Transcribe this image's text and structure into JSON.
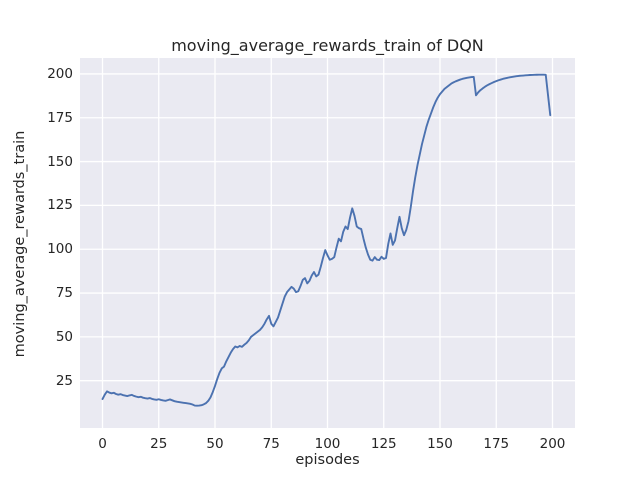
{
  "chart_data": {
    "type": "line",
    "title": "moving_average_rewards_train of DQN",
    "xlabel": "episodes",
    "ylabel": "moving_average_rewards_train",
    "legend": "none",
    "grid": true,
    "xlim": [
      -10,
      210
    ],
    "ylim": [
      -2,
      209.1
    ],
    "xticks": [
      0,
      25,
      50,
      75,
      100,
      125,
      150,
      175,
      200
    ],
    "yticks": [
      25,
      50,
      75,
      100,
      125,
      150,
      175,
      200
    ],
    "x_start": 0,
    "x_step": 1,
    "series": [
      {
        "name": "moving_average_rewards_train",
        "values": [
          14.5,
          17.0,
          18.9,
          18.2,
          17.8,
          18.1,
          17.4,
          17.0,
          17.3,
          16.8,
          16.5,
          16.2,
          16.6,
          16.9,
          16.3,
          15.9,
          15.6,
          15.8,
          15.3,
          15.0,
          14.8,
          15.1,
          14.6,
          14.3,
          14.1,
          14.4,
          14.0,
          13.7,
          13.5,
          13.9,
          14.3,
          13.8,
          13.3,
          13.0,
          12.8,
          12.6,
          12.4,
          12.2,
          12.0,
          11.8,
          11.4,
          10.8,
          10.7,
          10.8,
          11.0,
          11.5,
          12.2,
          13.5,
          15.5,
          18.5,
          22.0,
          26.0,
          29.5,
          32.0,
          33.0,
          36.0,
          38.5,
          41.0,
          43.0,
          44.5,
          44.0,
          44.8,
          44.3,
          45.5,
          46.5,
          48.0,
          50.0,
          51.0,
          52.0,
          53.0,
          54.0,
          55.5,
          57.5,
          60.0,
          62.0,
          57.5,
          56.0,
          58.5,
          61.0,
          65.0,
          69.0,
          73.0,
          75.5,
          77.0,
          78.5,
          77.5,
          75.5,
          76.0,
          79.0,
          82.5,
          83.5,
          80.5,
          82.0,
          85.0,
          87.0,
          84.5,
          85.5,
          90.0,
          95.0,
          99.5,
          96.5,
          94.0,
          94.5,
          95.5,
          101.0,
          106.0,
          104.5,
          110.0,
          113.0,
          111.5,
          118.0,
          123.3,
          119.0,
          113.0,
          112.0,
          111.5,
          106.0,
          101.0,
          97.0,
          94.0,
          93.5,
          95.5,
          94.0,
          93.8,
          95.7,
          94.5,
          95.0,
          103.0,
          109.0,
          102.5,
          105.0,
          112.0,
          118.5,
          112.0,
          108.0,
          111.0,
          116.0,
          124.0,
          133.0,
          141.0,
          148.0,
          154.0,
          160.0,
          165.0,
          170.0,
          174.0,
          177.5,
          181.0,
          184.0,
          186.5,
          188.5,
          190.0,
          191.5,
          192.5,
          193.5,
          194.5,
          195.2,
          195.8,
          196.3,
          196.8,
          197.2,
          197.5,
          197.8,
          198.0,
          198.2,
          198.3,
          187.8,
          189.5,
          190.8,
          191.8,
          192.7,
          193.5,
          194.2,
          194.8,
          195.4,
          195.9,
          196.4,
          196.8,
          197.2,
          197.5,
          197.8,
          198.1,
          198.3,
          198.5,
          198.7,
          198.9,
          199.0,
          199.1,
          199.2,
          199.3,
          199.4,
          199.45,
          199.5,
          199.55,
          199.6,
          199.6,
          199.6,
          199.5,
          188.0,
          176.5
        ]
      }
    ],
    "style": {
      "line_color": "#4c72b0",
      "plot_bg": "#eaeaf2",
      "grid_color": "#ffffff",
      "text_color": "#262626",
      "fig_bg": "#ffffff"
    }
  }
}
